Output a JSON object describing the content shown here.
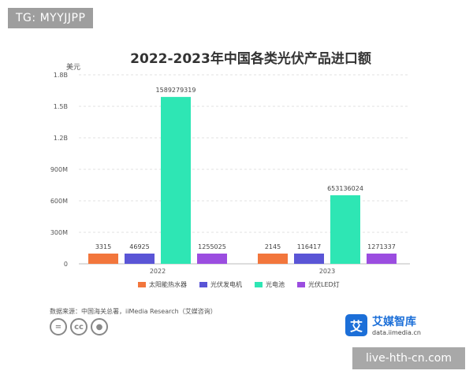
{
  "watermark_top": "TG: MYYJJPP",
  "watermark_bottom": "live-hth-cn.com",
  "source_text": "数据来源：中国海关总署，iiMedia Research（艾媒咨询）",
  "license_icons": [
    "equal-sign-icon",
    "cc-icon",
    "person-icon"
  ],
  "brand": {
    "name": "艾媒智库",
    "url": "data.iimedia.cn",
    "logo_char": "艾",
    "color": "#1c6fd8"
  },
  "chart_data": {
    "type": "bar",
    "title": "2022-2023年中国各类光伏产品进口额",
    "unit_label": "美元",
    "categories": [
      "2022",
      "2023"
    ],
    "ylim": [
      0,
      1800000000
    ],
    "yticks": [
      0,
      300000000,
      600000000,
      900000000,
      1200000000,
      1500000000,
      1800000000
    ],
    "ytick_labels": [
      "0",
      "300M",
      "600M",
      "900M",
      "1.2B",
      "1.5B",
      "1.8B"
    ],
    "grid": true,
    "legend_position": "bottom",
    "series": [
      {
        "name": "太阳能热水器",
        "color": "#f2763c",
        "values": [
          3315,
          2145
        ]
      },
      {
        "name": "光伏发电机",
        "color": "#5a55d6",
        "values": [
          46925,
          116417
        ]
      },
      {
        "name": "光电池",
        "color": "#2ee6b4",
        "values": [
          1589279319,
          653136024
        ]
      },
      {
        "name": "光伏LED灯",
        "color": "#9b4de0",
        "values": [
          1255025,
          1271337
        ]
      }
    ]
  }
}
